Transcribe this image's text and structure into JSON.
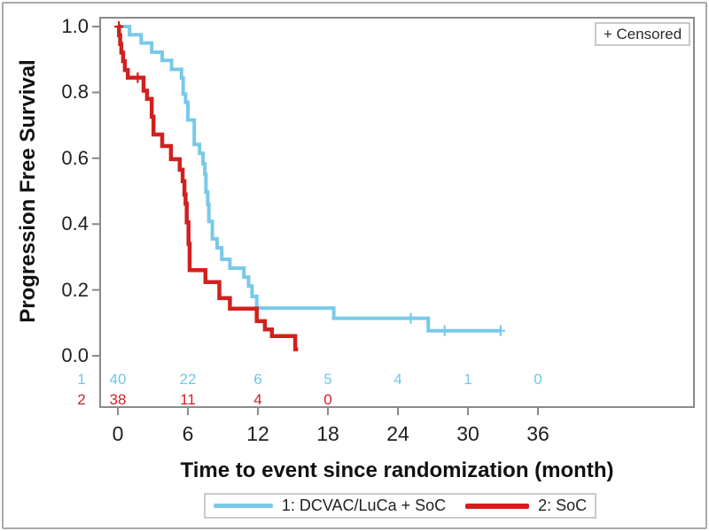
{
  "figure": {
    "censored_label": "+ Censored",
    "colors": {
      "arm1_blue": "#79C9E8",
      "arm2_red": "#D0211F",
      "frame_gray": "#8a8a8a",
      "outer_border": "#aaaaaa",
      "text": "#1c1c1c"
    }
  },
  "chart_data": {
    "type": "line",
    "subtype": "kaplan-meier-step-curves",
    "title": "",
    "xlabel": "Time to event since randomization (month)",
    "ylabel": "Progression Free Survival",
    "xlim": [
      0,
      36
    ],
    "ylim": [
      0.0,
      1.0
    ],
    "grid": false,
    "legend_position": "bottom",
    "x_ticks": [
      0,
      6,
      12,
      18,
      24,
      30,
      36
    ],
    "x_tick_labels": [
      "0",
      "6",
      "12",
      "18",
      "24",
      "30",
      "36"
    ],
    "y_ticks": [
      1.0,
      0.8,
      0.6,
      0.4,
      0.2,
      0.0
    ],
    "y_tick_labels": [
      "1.0",
      "0.8",
      "0.6",
      "0.4",
      "0.2",
      "0.0"
    ],
    "series": [
      {
        "name": "1: DCVAC/LuCa + SoC",
        "color": "#79C9E8",
        "line_width": 4,
        "steps": [
          [
            0,
            1.0
          ],
          [
            1.0,
            0.975
          ],
          [
            2.0,
            0.95
          ],
          [
            2.9,
            0.922
          ],
          [
            3.8,
            0.897
          ],
          [
            4.6,
            0.87
          ],
          [
            5.45,
            0.843
          ],
          [
            5.6,
            0.795
          ],
          [
            5.8,
            0.77
          ],
          [
            6.0,
            0.716
          ],
          [
            6.55,
            0.642
          ],
          [
            7.0,
            0.615
          ],
          [
            7.3,
            0.583
          ],
          [
            7.45,
            0.551
          ],
          [
            7.55,
            0.497
          ],
          [
            7.7,
            0.46
          ],
          [
            7.8,
            0.408
          ],
          [
            8.1,
            0.355
          ],
          [
            8.5,
            0.328
          ],
          [
            8.9,
            0.293
          ],
          [
            9.6,
            0.266
          ],
          [
            10.8,
            0.239
          ],
          [
            11.2,
            0.212
          ],
          [
            11.5,
            0.18
          ],
          [
            11.9,
            0.145
          ],
          [
            18.5,
            0.114
          ],
          [
            26.6,
            0.076
          ]
        ],
        "end_month": 32.8,
        "censor_marks": [
          [
            25.1,
            0.114
          ],
          [
            28.0,
            0.076
          ],
          [
            32.8,
            0.076
          ]
        ]
      },
      {
        "name": "2: SoC",
        "color": "#D0211F",
        "line_width": 4.5,
        "steps": [
          [
            0,
            1.0
          ],
          [
            0.1,
            0.974
          ],
          [
            0.2,
            0.947
          ],
          [
            0.3,
            0.921
          ],
          [
            0.45,
            0.895
          ],
          [
            0.6,
            0.868
          ],
          [
            0.85,
            0.845
          ],
          [
            2.2,
            0.805
          ],
          [
            2.5,
            0.78
          ],
          [
            2.9,
            0.726
          ],
          [
            3.05,
            0.672
          ],
          [
            3.8,
            0.637
          ],
          [
            4.55,
            0.597
          ],
          [
            5.3,
            0.565
          ],
          [
            5.55,
            0.53
          ],
          [
            5.7,
            0.49
          ],
          [
            5.8,
            0.462
          ],
          [
            5.9,
            0.405
          ],
          [
            6.05,
            0.34
          ],
          [
            6.15,
            0.26
          ],
          [
            7.5,
            0.224
          ],
          [
            8.7,
            0.175
          ],
          [
            9.6,
            0.143
          ],
          [
            11.9,
            0.105
          ],
          [
            12.6,
            0.08
          ],
          [
            13.2,
            0.06
          ],
          [
            15.2,
            0.02
          ]
        ],
        "end_month": 15.45,
        "censor_marks": [
          [
            0.08,
            1.0
          ],
          [
            1.7,
            0.845
          ]
        ]
      }
    ],
    "at_risk_table": {
      "rows": [
        {
          "label": "1",
          "color": "#72C7E9",
          "counts": [
            "40",
            "22",
            "6",
            "5",
            "4",
            "1",
            "0"
          ]
        },
        {
          "label": "2",
          "color": "#CE2127",
          "counts": [
            "38",
            "11",
            "4",
            "0"
          ]
        }
      ]
    }
  },
  "legend": {
    "items": [
      {
        "label": "1: DCVAC/LuCa + SoC"
      },
      {
        "label": "2: SoC"
      }
    ]
  }
}
